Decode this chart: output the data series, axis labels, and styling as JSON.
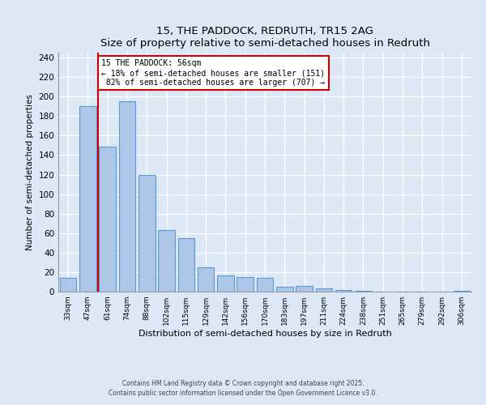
{
  "title": "15, THE PADDOCK, REDRUTH, TR15 2AG",
  "subtitle": "Size of property relative to semi-detached houses in Redruth",
  "xlabel": "Distribution of semi-detached houses by size in Redruth",
  "ylabel": "Number of semi-detached properties",
  "categories": [
    "33sqm",
    "47sqm",
    "61sqm",
    "74sqm",
    "88sqm",
    "102sqm",
    "115sqm",
    "129sqm",
    "142sqm",
    "156sqm",
    "170sqm",
    "183sqm",
    "197sqm",
    "211sqm",
    "224sqm",
    "238sqm",
    "251sqm",
    "265sqm",
    "279sqm",
    "292sqm",
    "306sqm"
  ],
  "values": [
    14,
    190,
    149,
    195,
    120,
    63,
    55,
    25,
    17,
    15,
    14,
    5,
    6,
    3,
    2,
    1,
    0,
    0,
    0,
    0,
    1
  ],
  "bar_color": "#aec6e8",
  "bar_edge_color": "#5b9bd5",
  "property_line_index": 1,
  "property_line_color": "#cc0000",
  "annotation_text": "15 THE PADDOCK: 56sqm\n← 18% of semi-detached houses are smaller (151)\n 82% of semi-detached houses are larger (707) →",
  "annotation_box_color": "#cc0000",
  "ylim": [
    0,
    245
  ],
  "yticks": [
    0,
    20,
    40,
    60,
    80,
    100,
    120,
    140,
    160,
    180,
    200,
    220,
    240
  ],
  "footer_line1": "Contains HM Land Registry data © Crown copyright and database right 2025.",
  "footer_line2": "Contains public sector information licensed under the Open Government Licence v3.0.",
  "bg_color": "#dce8f5",
  "grid_color": "#ffffff"
}
